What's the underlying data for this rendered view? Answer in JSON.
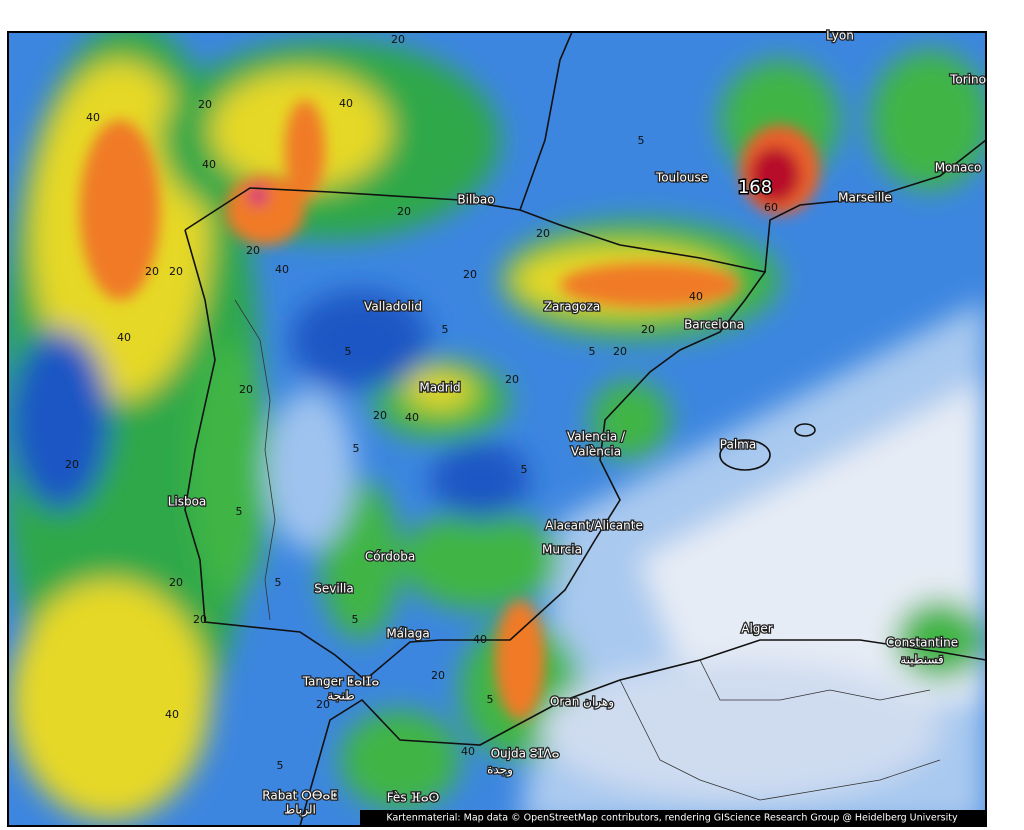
{
  "map": {
    "cities": [
      "Lyon",
      "Torino",
      "Toulouse",
      "Monaco",
      "Marseille",
      "Bilbao",
      "Valladolid",
      "Zaragoza",
      "Barcelona",
      "Madrid",
      "Valencia /",
      "València",
      "Palma",
      "Lisboa",
      "Alacant/Alicante",
      "Murcia",
      "Córdoba",
      "Sevilla",
      "Málaga",
      "Alger",
      "Constantine",
      "قسنطينة",
      "Tanger ⵟⴰⵏⵊⴰ",
      "طنجة",
      "Oran وهران",
      "Oujda ⵓⵊⴷⴰ",
      "وجدة",
      "Rabat ⵔⴱⴰⵟ",
      "الرباط",
      "Fès ⴼⴰⵙ"
    ],
    "max_label": "168",
    "contour_labels": [
      "40",
      "20",
      "40",
      "20",
      "40",
      "20",
      "40",
      "20",
      "40",
      "20",
      "20",
      "5",
      "5",
      "20",
      "20",
      "40",
      "20",
      "5",
      "5",
      "20",
      "20",
      "5",
      "20",
      "20",
      "40",
      "20",
      "20",
      "5",
      "20",
      "40",
      "5",
      "5",
      "20",
      "40",
      "5",
      "20",
      "5",
      "60",
      "40",
      "5"
    ],
    "attribution": "Kartenmaterial: Map data © OpenStreetMap contributors, rendering GIScience Research Group @ Heidelberg University"
  }
}
